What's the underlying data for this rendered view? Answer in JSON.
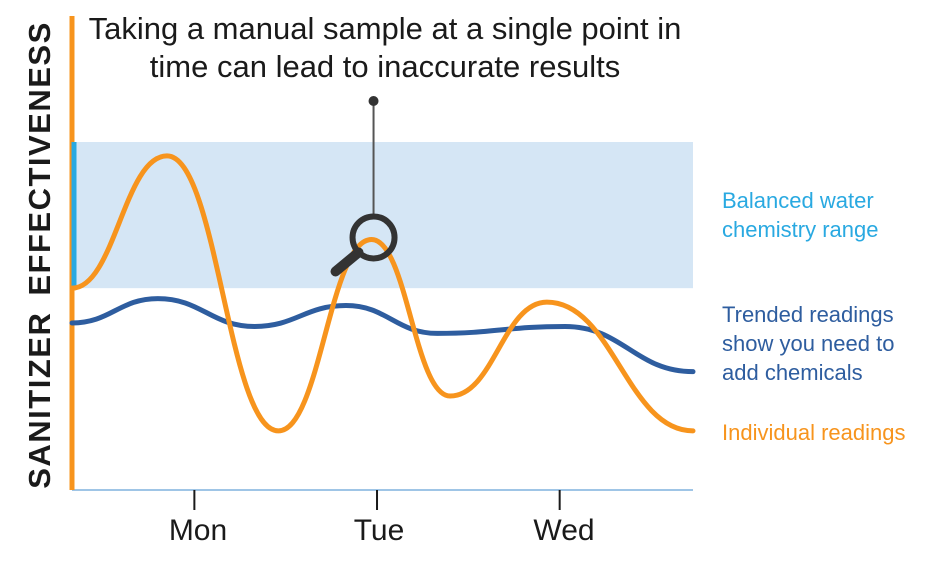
{
  "chart_data": {
    "type": "line",
    "annotation": "Taking a manual sample at a single point in time can lead to inaccurate results",
    "ylabel_words": [
      "SANITIZER",
      "EFFECTIVENESS"
    ],
    "categories": [
      "Mon",
      "Tue",
      "Wed"
    ],
    "x_positions": [
      0.67,
      1.67,
      2.67
    ],
    "xlim": [
      0,
      3.4
    ],
    "ylim": [
      0,
      100
    ],
    "balanced_range": {
      "label": "Balanced water chemistry range",
      "low": 58,
      "high": 100
    },
    "series": [
      {
        "name": "Trended readings show you need to add chemicals",
        "color": "#2e5d9f",
        "x": [
          0.0,
          0.47,
          1.0,
          1.5,
          2.0,
          2.7,
          3.4
        ],
        "values": [
          48,
          55,
          47,
          53,
          45,
          47,
          34
        ]
      },
      {
        "name": "Individual readings",
        "color": "#f7941d",
        "x": [
          0.0,
          0.52,
          1.13,
          1.64,
          2.07,
          2.6,
          3.4
        ],
        "values": [
          58,
          96,
          17,
          72,
          27,
          54,
          17
        ]
      }
    ],
    "sample_point": {
      "x": 1.64,
      "y": 72
    },
    "colors": {
      "range_fill": "#d5e6f5",
      "range_edge": "#29a9e1",
      "axis": "#f7941d",
      "baseline": "#9fc5e6",
      "tick": "#1a1a1a"
    }
  }
}
